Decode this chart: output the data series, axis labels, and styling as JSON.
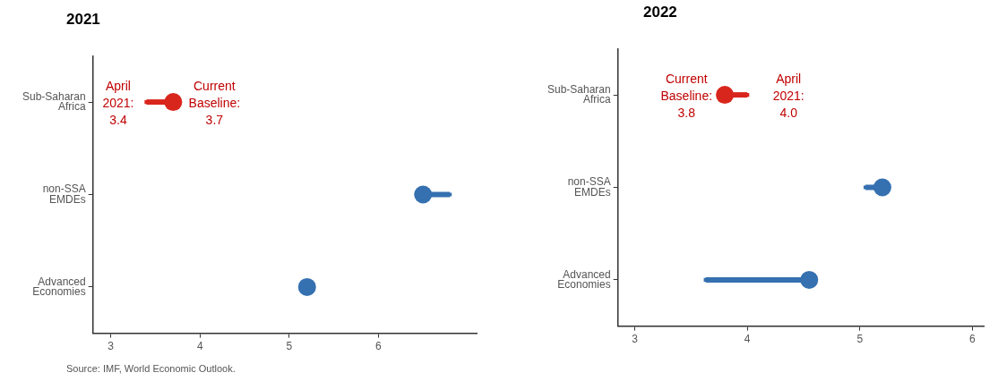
{
  "chart_data": [
    {
      "type": "scatter",
      "title": "2021",
      "orientation": "horizontal",
      "categories": [
        "Sub-Saharan Africa",
        "non-SSA EMDEs",
        "Advanced Economies"
      ],
      "xlim": [
        2.8,
        7.1
      ],
      "xticks": [
        3,
        4,
        5,
        6
      ],
      "grid": false,
      "legend": false,
      "series": [
        {
          "marker": "circle",
          "colors": [
            "#d9261c",
            "#3570b0",
            "#3570b0"
          ],
          "values": [
            3.7,
            6.5,
            5.2
          ]
        },
        {
          "marker": "square",
          "colors": [
            "#d9261c",
            "#3570b0",
            "#3570b0"
          ],
          "values": [
            3.4,
            6.8,
            null
          ]
        }
      ],
      "annotations": [
        {
          "text": "April 2021: 3.4",
          "x": 3.4,
          "y": "Sub-Saharan Africa"
        },
        {
          "text": "Current Baseline: 3.7",
          "x": 3.7,
          "y": "Sub-Saharan Africa"
        },
        "Source: IMF, World Economic Outlook."
      ]
    },
    {
      "type": "scatter",
      "title": "2022",
      "orientation": "horizontal",
      "categories": [
        "Sub-Saharan Africa",
        "non-SSA EMDEs",
        "Advanced Economies"
      ],
      "xlim": [
        2.85,
        6.1
      ],
      "xticks": [
        3,
        4,
        5,
        6
      ],
      "grid": false,
      "legend": false,
      "series": [
        {
          "marker": "circle",
          "colors": [
            "#d9261c",
            "#3570b0",
            "#3570b0"
          ],
          "values": [
            3.8,
            5.2,
            4.55
          ]
        },
        {
          "marker": "square",
          "colors": [
            "#d9261c",
            "#3570b0",
            "#3570b0"
          ],
          "values": [
            4.0,
            5.05,
            3.63
          ]
        }
      ],
      "annotations": [
        {
          "text": "Current Baseline: 3.8",
          "x": 3.8,
          "y": "Sub-Saharan Africa"
        },
        {
          "text": "April 2021: 4.0",
          "x": 4.0,
          "y": "Sub-Saharan Africa"
        }
      ]
    }
  ]
}
